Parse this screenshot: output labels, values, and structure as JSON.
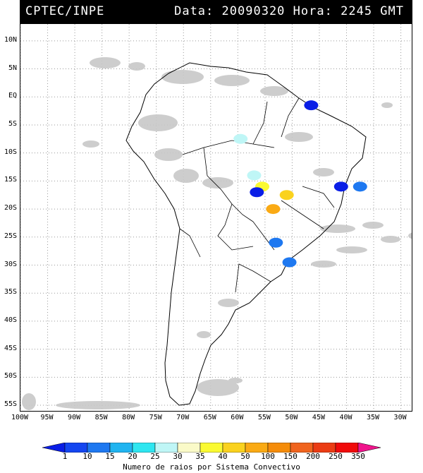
{
  "header": {
    "org": "CPTEC/INPE",
    "date_label": "Data:",
    "date": "20090320",
    "hour_label": "Hora:",
    "hour": "2245 GMT"
  },
  "axes": {
    "lat_labels": [
      "10N",
      "5N",
      "EQ",
      "5S",
      "10S",
      "15S",
      "20S",
      "25S",
      "30S",
      "35S",
      "40S",
      "45S",
      "50S",
      "55S"
    ],
    "lon_labels": [
      "100W",
      "95W",
      "90W",
      "85W",
      "80W",
      "75W",
      "70W",
      "65W",
      "60W",
      "55W",
      "50W",
      "45W",
      "40W",
      "35W",
      "30W"
    ]
  },
  "colorbar": {
    "labels": [
      "1",
      "10",
      "15",
      "20",
      "25",
      "30",
      "35",
      "40",
      "50",
      "100",
      "150",
      "200",
      "250",
      "350"
    ],
    "colors": [
      "#0a1ee6",
      "#1446f0",
      "#1e78f0",
      "#20b4f0",
      "#2ee6f0",
      "#bff6f6",
      "#fafac8",
      "#fafa32",
      "#fad21e",
      "#faaa14",
      "#f58c0a",
      "#f0641e",
      "#eb3c14",
      "#f00a0a",
      "#f0148c"
    ],
    "title": "Numero de raios por Sistema Convectivo"
  },
  "lightning_cells": [
    {
      "lon": -59.5,
      "lat": -7.5,
      "level": "25"
    },
    {
      "lon": -57.0,
      "lat": -14.0,
      "level": "25"
    },
    {
      "lon": -55.5,
      "lat": -16.0,
      "level": "35"
    },
    {
      "lon": -53.5,
      "lat": -20.0,
      "level": "50"
    },
    {
      "lon": -51.0,
      "lat": -17.5,
      "level": "40"
    },
    {
      "lon": -53.0,
      "lat": -26.0,
      "level": "10"
    },
    {
      "lon": -50.5,
      "lat": -29.5,
      "level": "10"
    },
    {
      "lon": -37.5,
      "lat": -16.0,
      "level": "10"
    },
    {
      "lon": -41.0,
      "lat": -16.0,
      "level": "1"
    },
    {
      "lon": -46.5,
      "lat": -1.5,
      "level": "1"
    },
    {
      "lon": -56.5,
      "lat": -17.0,
      "level": "1"
    }
  ]
}
